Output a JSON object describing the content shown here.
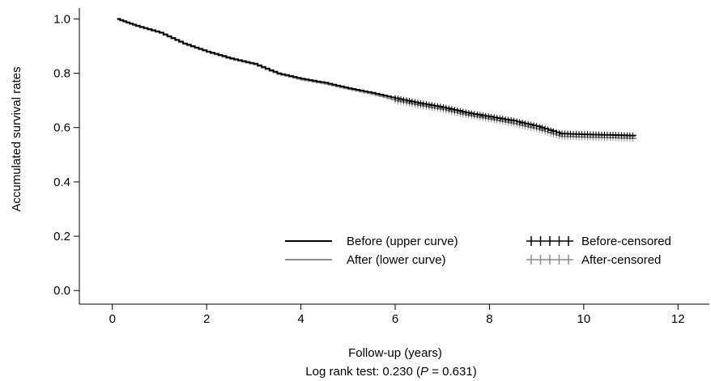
{
  "chart_data": {
    "type": "line",
    "xlabel": "Follow-up (years)",
    "ylabel": "Accumulated survival rates",
    "note": {
      "prefix": "Log rank test: 0.230 (",
      "p_symbol": "P",
      "suffix": " = 0.631)"
    },
    "xlim": [
      -0.7,
      12.7
    ],
    "ylim": [
      -0.05,
      1.04
    ],
    "xticks": [
      0,
      2,
      4,
      6,
      8,
      10,
      12
    ],
    "yticks": [
      0.0,
      0.2,
      0.4,
      0.6,
      0.8,
      1.0
    ],
    "xtick_labels": [
      "0",
      "2",
      "4",
      "6",
      "8",
      "10",
      "12"
    ],
    "ytick_labels": [
      "0.0",
      "0.2",
      "0.4",
      "0.6",
      "0.8",
      "1.0"
    ],
    "grid": false,
    "legend_position": "bottom-right",
    "series": [
      {
        "name": "Before (upper curve)",
        "censored_name": "Before-censored",
        "color": "#000000",
        "x": [
          0.1,
          0.5,
          1.0,
          1.5,
          2.0,
          2.5,
          3.0,
          3.5,
          4.0,
          4.5,
          5.0,
          5.5,
          6.0,
          6.5,
          7.0,
          7.5,
          8.0,
          8.5,
          9.0,
          9.5,
          10.0,
          10.5,
          11.1
        ],
        "y": [
          1.0,
          0.975,
          0.95,
          0.91,
          0.88,
          0.855,
          0.835,
          0.8,
          0.78,
          0.765,
          0.745,
          0.728,
          0.708,
          0.69,
          0.675,
          0.655,
          0.64,
          0.625,
          0.605,
          0.578,
          0.575,
          0.573,
          0.57
        ],
        "censored_range": [
          6.0,
          11.1
        ]
      },
      {
        "name": "After (lower curve)",
        "censored_name": "After-censored",
        "color": "#8c8c8c",
        "x": [
          0.1,
          0.5,
          1.0,
          1.5,
          2.0,
          2.5,
          3.0,
          3.5,
          4.0,
          4.5,
          5.0,
          5.5,
          6.0,
          6.5,
          7.0,
          7.5,
          8.0,
          8.5,
          9.0,
          9.5,
          10.0,
          10.5,
          11.1
        ],
        "y": [
          0.998,
          0.973,
          0.948,
          0.908,
          0.878,
          0.852,
          0.832,
          0.797,
          0.776,
          0.761,
          0.741,
          0.723,
          0.7,
          0.682,
          0.667,
          0.647,
          0.632,
          0.615,
          0.595,
          0.568,
          0.565,
          0.563,
          0.56
        ],
        "censored_range": [
          6.0,
          11.1
        ]
      }
    ]
  }
}
